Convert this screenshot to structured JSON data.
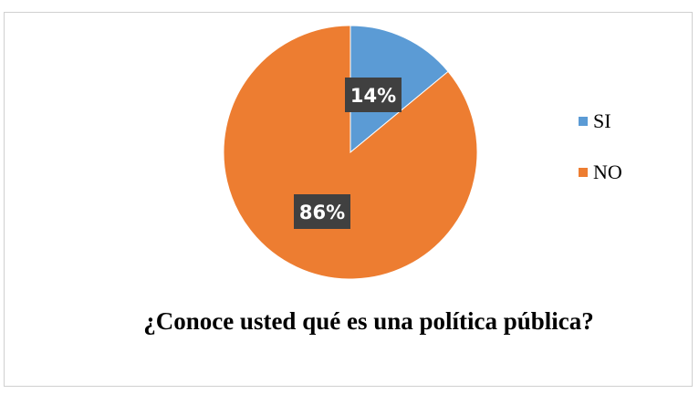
{
  "chart_data": {
    "type": "pie",
    "title": "¿Conoce usted qué es una política pública?",
    "categories": [
      "SI",
      "NO"
    ],
    "values": [
      14,
      86
    ],
    "data_labels": [
      "14%",
      "86%"
    ],
    "colors": [
      "#5b9bd5",
      "#ed7d31"
    ],
    "legend_position": "right"
  },
  "style": {
    "label_background": "#404040",
    "label_text_color": "#ffffff",
    "slice_border": "#ffffff"
  }
}
